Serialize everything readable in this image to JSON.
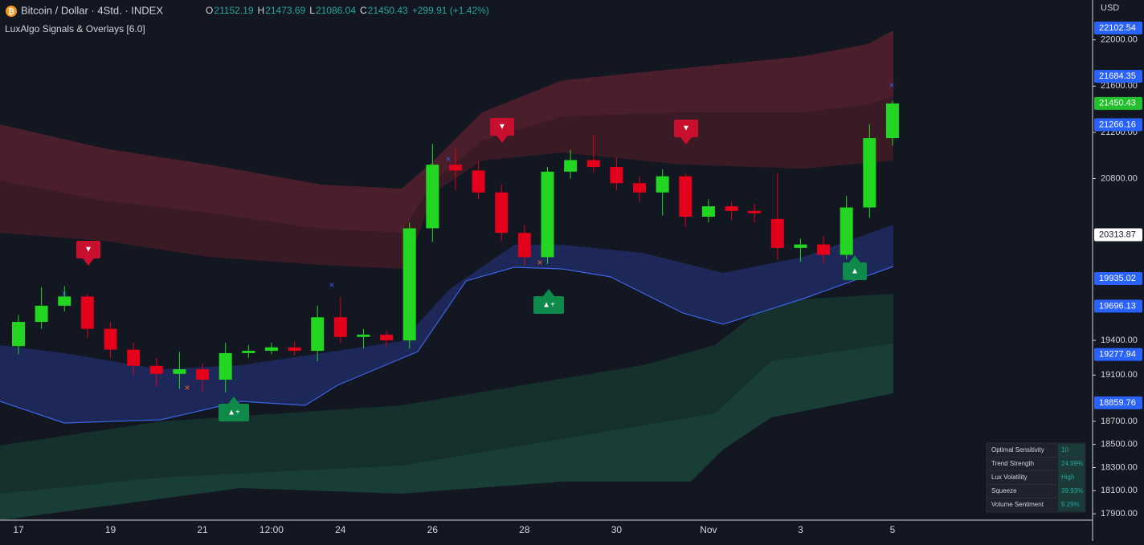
{
  "header": {
    "symbol": "Bitcoin / Dollar · 4Std. · INDEX",
    "ohlc": [
      {
        "label": "O",
        "value": "21152.19"
      },
      {
        "label": "H",
        "value": "21473.69"
      },
      {
        "label": "L",
        "value": "21086.04"
      },
      {
        "label": "C",
        "value": "21450.43"
      }
    ],
    "change": "+299.91 (+1.42%)",
    "indicator": "LuxAlgo Signals & Overlays [6.0]",
    "currency": "USD"
  },
  "chart_data": {
    "type": "candlestick",
    "categories": [
      "17",
      null,
      null,
      null,
      "19",
      null,
      null,
      null,
      "21",
      null,
      null,
      "12:00",
      null,
      null,
      "24",
      null,
      null,
      null,
      "26",
      null,
      null,
      null,
      "28",
      null,
      null,
      null,
      "30",
      null,
      null,
      null,
      "Nov",
      null,
      null,
      null,
      "3",
      null,
      null,
      null,
      "5"
    ],
    "open": [
      19350,
      19560,
      19700,
      19780,
      19500,
      19320,
      19180,
      19110,
      19150,
      19060,
      19290,
      19310,
      19340,
      19310,
      19600,
      19430,
      19450,
      19400,
      20370,
      20920,
      20870,
      20680,
      20330,
      20120,
      20860,
      20960,
      20900,
      20760,
      20680,
      20820,
      20470,
      20560,
      20520,
      20450,
      20200,
      20230,
      20140,
      20550,
      21150
    ],
    "high": [
      19620,
      19860,
      19870,
      19800,
      19560,
      19380,
      19250,
      19300,
      19200,
      19380,
      19360,
      19380,
      19390,
      19700,
      19780,
      19500,
      19480,
      20420,
      21100,
      21060,
      20950,
      20750,
      20400,
      20900,
      21050,
      21180,
      20980,
      20820,
      20880,
      20850,
      20620,
      20600,
      20580,
      20850,
      20280,
      20300,
      20650,
      21270,
      21474
    ],
    "low": [
      19280,
      19500,
      19650,
      19420,
      19250,
      19100,
      19000,
      18980,
      18960,
      18950,
      19250,
      19280,
      19270,
      19220,
      19380,
      19330,
      19350,
      19330,
      20250,
      20700,
      20620,
      20260,
      20050,
      20060,
      20800,
      20850,
      20700,
      20600,
      20480,
      20380,
      20420,
      20440,
      20420,
      20100,
      20080,
      20070,
      20100,
      20460,
      21086
    ],
    "close": [
      19560,
      19700,
      19780,
      19500,
      19320,
      19180,
      19110,
      19150,
      19060,
      19290,
      19310,
      19340,
      19310,
      19600,
      19430,
      19450,
      19400,
      20370,
      20920,
      20870,
      20680,
      20330,
      20120,
      20860,
      20960,
      20900,
      20760,
      20680,
      20820,
      20470,
      20560,
      20520,
      20500,
      20200,
      20230,
      20140,
      20550,
      21150,
      21450
    ],
    "up_color": "#22d622",
    "down_color": "#e3001b",
    "ylim": [
      17845,
      22345
    ],
    "yticks": [
      {
        "value": 17900,
        "label": "17900.00"
      },
      {
        "value": 18100,
        "label": "18100.00"
      },
      {
        "value": 18300,
        "label": "18300.00"
      },
      {
        "value": 18500,
        "label": "18500.00"
      },
      {
        "value": 18700,
        "label": "18700.00"
      },
      {
        "value": 19100,
        "label": "19100.00"
      },
      {
        "value": 19400,
        "label": "19400.00"
      },
      {
        "value": 20800,
        "label": "20800.00"
      },
      {
        "value": 21200,
        "label": "21200.00"
      },
      {
        "value": 21600,
        "label": "21600.00"
      },
      {
        "value": 22000,
        "label": "22000.00"
      }
    ],
    "price_labels": [
      {
        "value": 22102.54,
        "label": "22102.54",
        "color": "#2962ff"
      },
      {
        "value": 21684.35,
        "label": "21684.35",
        "color": "#2962ff"
      },
      {
        "value": 21450.43,
        "label": "21450.43",
        "color": "#22c02b"
      },
      {
        "value": 21266.16,
        "label": "21266.16",
        "color": "#2962ff"
      },
      {
        "value": 20313.87,
        "label": "20313.87",
        "color": "#ffffff"
      },
      {
        "value": 19935.02,
        "label": "19935.02",
        "color": "#2962ff"
      },
      {
        "value": 19696.13,
        "label": "19696.13",
        "color": "#2962ff"
      },
      {
        "value": 19277.94,
        "label": "19277.94",
        "color": "#2962ff"
      },
      {
        "value": 18859.76,
        "label": "18859.76",
        "color": "#2962ff"
      }
    ]
  },
  "table": {
    "rows": [
      [
        "Optimal Sensitivity",
        "10"
      ],
      [
        "Trend Strength",
        "24.99%"
      ],
      [
        "Lux Volatility",
        "High"
      ],
      [
        "Squeeze",
        "39.93%"
      ],
      [
        "Volume Sentiment",
        "9.29%"
      ]
    ]
  }
}
